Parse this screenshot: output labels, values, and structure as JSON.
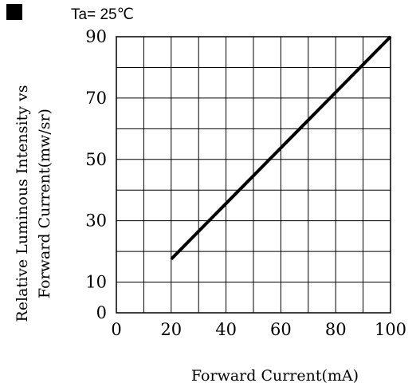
{
  "chart_data": {
    "type": "line",
    "title": "",
    "annotation": "Ta= 25℃",
    "xlabel": "Forward Current(mA)",
    "ylabel": "Relative Luminous Intensity vs Forward Current(mw/sr)",
    "xlim": [
      0,
      100
    ],
    "ylim": [
      0,
      90
    ],
    "xticks": [
      0,
      20,
      40,
      60,
      80,
      100
    ],
    "xtick_labels": [
      "0",
      "20",
      "40",
      "60",
      "80",
      "100"
    ],
    "yticks": [
      0,
      10,
      30,
      50,
      70,
      90
    ],
    "ytick_labels": [
      "0",
      "10",
      "30",
      "50",
      "70",
      "90"
    ],
    "x_grid_step": 10,
    "y_grid_step": 10,
    "grid": true,
    "legend": "none",
    "series": [
      {
        "x": [
          20,
          100
        ],
        "y": [
          17.5,
          90
        ],
        "color": "#000000"
      }
    ]
  }
}
